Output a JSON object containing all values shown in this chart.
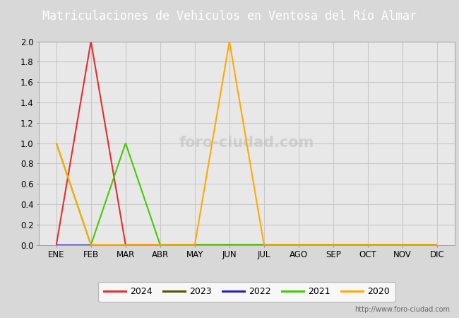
{
  "title": "Matriculaciones de Vehiculos en Ventosa del Río Almar",
  "title_bg_color": "#4a7cc7",
  "title_text_color": "#ffffff",
  "plot_bg_color": "#e8e8e8",
  "outer_bg_color": "#d8d8d8",
  "months": [
    "ENE",
    "FEB",
    "MAR",
    "ABR",
    "MAY",
    "JUN",
    "JUL",
    "AGO",
    "SEP",
    "OCT",
    "NOV",
    "DIC"
  ],
  "series": {
    "2024": {
      "color": "#e03030",
      "data": [
        0,
        2,
        0,
        0,
        0,
        0,
        0,
        0,
        0,
        0,
        0,
        0
      ]
    },
    "2023": {
      "color": "#555500",
      "data": [
        0,
        0,
        0,
        0,
        0,
        0,
        0,
        0,
        0,
        0,
        0,
        0
      ]
    },
    "2022": {
      "color": "#2222bb",
      "data": [
        0,
        0,
        0,
        0,
        0,
        0,
        0,
        0,
        0,
        0,
        0,
        0
      ]
    },
    "2021": {
      "color": "#44cc00",
      "data": [
        1,
        0,
        1,
        0,
        0,
        0,
        0,
        0,
        0,
        0,
        0,
        0
      ]
    },
    "2020": {
      "color": "#ffaa00",
      "data": [
        1,
        0,
        0,
        0,
        0,
        2,
        0,
        0,
        0,
        0,
        0,
        0
      ]
    }
  },
  "ylim": [
    0,
    2.0
  ],
  "yticks": [
    0.0,
    0.2,
    0.4,
    0.6,
    0.8,
    1.0,
    1.2,
    1.4,
    1.6,
    1.8,
    2.0
  ],
  "legend_order": [
    "2024",
    "2023",
    "2022",
    "2021",
    "2020"
  ],
  "watermark_text": "foro-ciudad.com",
  "watermark_url": "http://www.foro-ciudad.com",
  "grid_color": "#c8c8c8",
  "grid_lw": 0.8,
  "line_lw": 1.5,
  "title_fontsize": 12,
  "tick_fontsize": 8.5,
  "legend_fontsize": 9
}
